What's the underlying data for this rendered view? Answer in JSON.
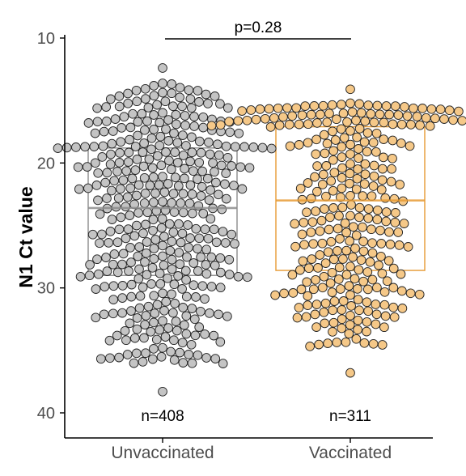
{
  "chart_data": {
    "type": "scatter",
    "subtype": "beeswarm-with-boxplot",
    "title": "",
    "xlabel": "",
    "ylabel": "N1 Ct value",
    "ylim": [
      10,
      42
    ],
    "y_reversed": true,
    "y_ticks": [
      "10",
      "20",
      "30",
      "40"
    ],
    "grid": false,
    "categories": [
      "Unvaccinated",
      "Vaccinated"
    ],
    "series": [
      {
        "name": "Unvaccinated",
        "color": "#c4c4c4",
        "box_color": "#8c8c8c",
        "count_label": "n=408",
        "n": 408,
        "q1": 18.8,
        "median": 23.6,
        "q3": 29.0,
        "min": 12.4,
        "max": 38.3
      },
      {
        "name": "Vaccinated",
        "color": "#f5c888",
        "box_color": "#e69a33",
        "count_label": "n=311",
        "n": 311,
        "q1": 17.1,
        "median": 23.0,
        "q3": 28.6,
        "min": 14.1,
        "max": 36.8
      }
    ],
    "annotations": [
      {
        "text": "p=0.28",
        "between": [
          "Unvaccinated",
          "Vaccinated"
        ]
      }
    ]
  }
}
